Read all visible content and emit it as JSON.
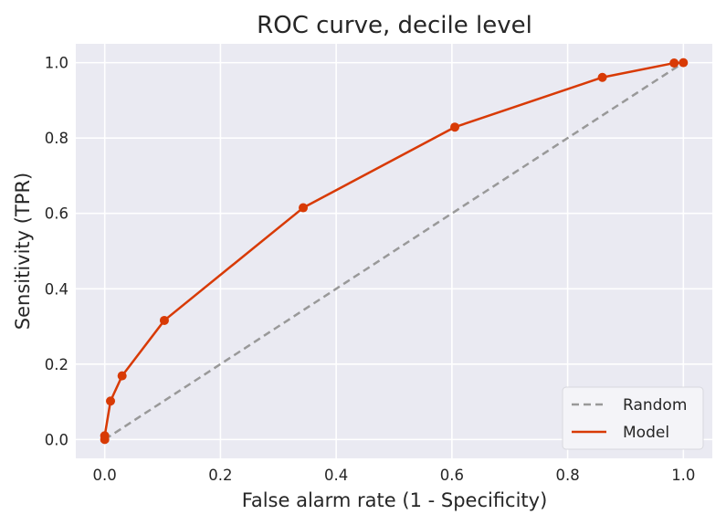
{
  "chart_data": {
    "type": "line",
    "title": "ROC curve, decile level",
    "xlabel": "False alarm rate (1 - Specificity)",
    "ylabel": "Sensitivity (TPR)",
    "xlim": [
      -0.05,
      1.05
    ],
    "ylim": [
      -0.05,
      1.05
    ],
    "xticks": [
      "0.0",
      "0.2",
      "0.4",
      "0.6",
      "0.8",
      "1.0"
    ],
    "yticks": [
      "0.0",
      "0.2",
      "0.4",
      "0.6",
      "0.8",
      "1.0"
    ],
    "grid": true,
    "legend_position": "lower-right",
    "series": [
      {
        "name": "Random",
        "style": "dashed",
        "color": "#999999",
        "x": [
          0,
          1
        ],
        "y": [
          0,
          1
        ]
      },
      {
        "name": "Model",
        "style": "solid",
        "color": "#d83a05",
        "markers": true,
        "x": [
          0.0,
          0.0,
          0.01,
          0.03,
          0.103,
          0.343,
          0.605,
          0.86,
          0.984,
          1.0
        ],
        "y": [
          0.0,
          0.01,
          0.102,
          0.169,
          0.316,
          0.615,
          0.829,
          0.961,
          0.999,
          1.0
        ]
      }
    ],
    "colors": {
      "plot_background": "#eaeaf2",
      "grid": "#ffffff",
      "text": "#262626"
    }
  }
}
